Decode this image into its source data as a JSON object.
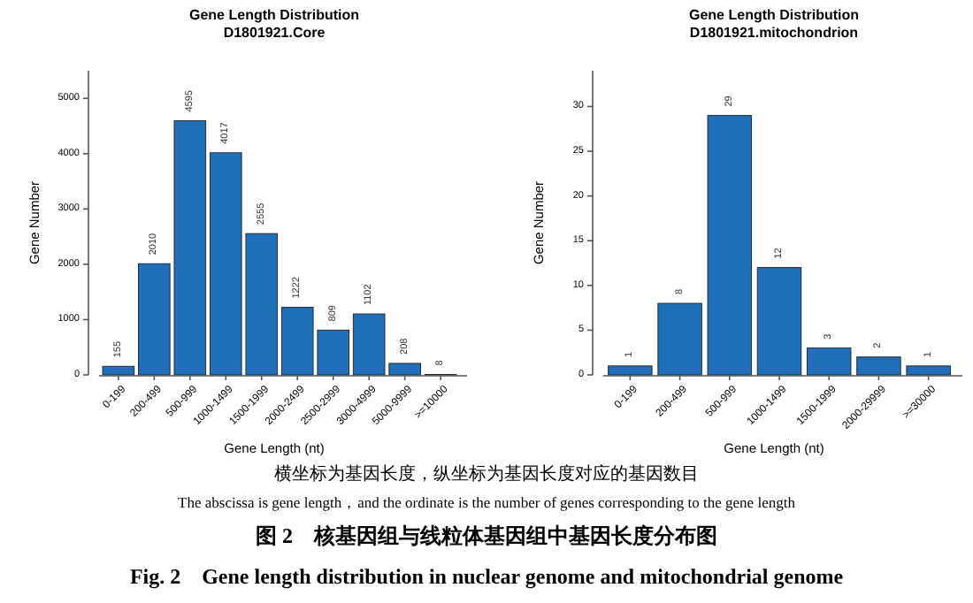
{
  "chart_data": [
    {
      "type": "bar",
      "title": "Gene Length Distribution",
      "subtitle": "D1801921.Core",
      "xlabel": "Gene Length (nt)",
      "ylabel": "Gene Number",
      "categories": [
        "0-199",
        "200-499",
        "500-999",
        "1000-1499",
        "1500-1999",
        "2000-2499",
        "2500-2999",
        "3000-4999",
        "5000-9999",
        ">=10000"
      ],
      "values": [
        155,
        2010,
        4595,
        4017,
        2555,
        1222,
        809,
        1102,
        208,
        8
      ],
      "color": "#1f6fba",
      "ylim": [
        0,
        5500
      ],
      "yticks": [
        0,
        1000,
        2000,
        3000,
        4000,
        5000
      ],
      "data_labels": true
    },
    {
      "type": "bar",
      "title": "Gene Length Distribution",
      "subtitle": "D1801921.mitochondrion",
      "xlabel": "Gene Length (nt)",
      "ylabel": "Gene Number",
      "categories": [
        "0-199",
        "200-499",
        "500-999",
        "1000-1499",
        "1500-1999",
        "2000-29999",
        ">=30000"
      ],
      "values": [
        1,
        8,
        29,
        12,
        3,
        2,
        1
      ],
      "color": "#1f6fba",
      "ylim": [
        0,
        34
      ],
      "yticks": [
        0,
        5,
        10,
        15,
        20,
        25,
        30
      ],
      "data_labels": true,
      "annotations": [
        "横坐标为基因长度，纵坐标为基因长度对应的基因数目",
        "The abscissa is gene length，and the ordinate is the number of genes corresponding to the gene length",
        "图 2　核基因组与线粒体基因组中基因长度分布图",
        "Fig. 2　Gene length distribution in nuclear genome and mitochondrial genome"
      ]
    }
  ]
}
